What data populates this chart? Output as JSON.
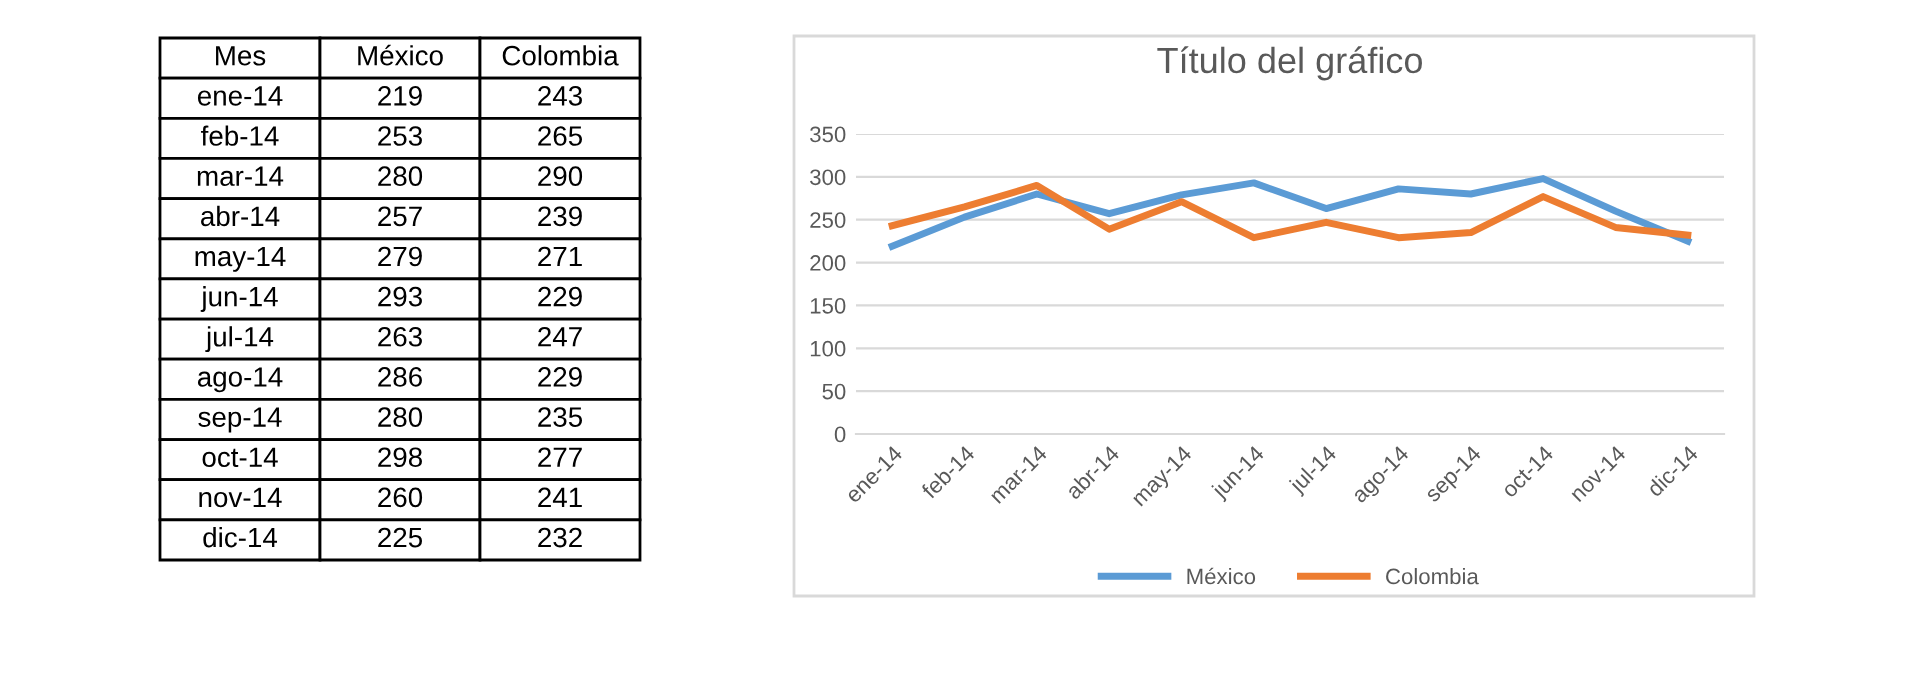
{
  "chart_data": [
    {
      "type": "other",
      "annotations": [
        "Mes"
      ],
      "categories": [
        "ene-14",
        "feb-14",
        "mar-14",
        "abr-14",
        "may-14",
        "jun-14",
        "jul-14",
        "ago-14",
        "sep-14",
        "oct-14",
        "nov-14",
        "dic-14"
      ],
      "series": [
        {
          "name": "México",
          "values": [
            219,
            253,
            280,
            257,
            279,
            293,
            263,
            286,
            280,
            298,
            260,
            225
          ]
        },
        {
          "name": "Colombia",
          "values": [
            243,
            265,
            290,
            239,
            271,
            229,
            247,
            229,
            235,
            277,
            241,
            232
          ]
        }
      ],
      "data_labels": true
    },
    {
      "type": "line",
      "title": "Título del gráfico",
      "categories": [
        "ene-14",
        "feb-14",
        "mar-14",
        "abr-14",
        "may-14",
        "jun-14",
        "jul-14",
        "ago-14",
        "sep-14",
        "oct-14",
        "nov-14",
        "dic-14"
      ],
      "series": [
        {
          "name": "México",
          "color": "#5b9bd5",
          "values": [
            219,
            253,
            280,
            257,
            279,
            293,
            263,
            286,
            280,
            298,
            260,
            225
          ]
        },
        {
          "name": "Colombia",
          "color": "#ed7d31",
          "values": [
            243,
            265,
            290,
            239,
            271,
            229,
            247,
            229,
            235,
            277,
            241,
            232
          ]
        }
      ],
      "ylim": [
        0,
        350
      ],
      "yticks": [
        0,
        50,
        100,
        150,
        200,
        250,
        300,
        350
      ],
      "grid": "y",
      "legend": "bottom",
      "marker": "none",
      "line_style": "solid"
    }
  ]
}
